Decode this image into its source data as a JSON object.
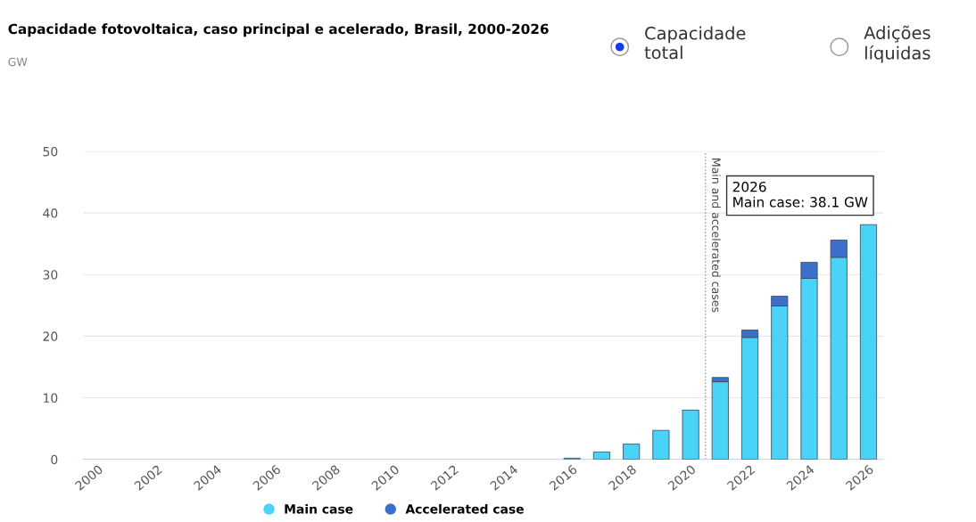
{
  "chart_data": {
    "type": "bar",
    "title": "Capacidade fotovoltaica, caso principal e acelerado, Brasil, 2000-2026",
    "subtitle": "GW",
    "x": [
      2000,
      2001,
      2002,
      2003,
      2004,
      2005,
      2006,
      2007,
      2008,
      2009,
      2010,
      2011,
      2012,
      2013,
      2014,
      2015,
      2016,
      2017,
      2018,
      2019,
      2020,
      2021,
      2022,
      2023,
      2024,
      2025,
      2026
    ],
    "stacked": true,
    "series": [
      {
        "name": "Main case",
        "color": "#48d3f7",
        "values": [
          0,
          0,
          0,
          0,
          0,
          0,
          0,
          0,
          0,
          0,
          0,
          0,
          0,
          0,
          0,
          0,
          0.2,
          1.2,
          2.5,
          4.7,
          8.0,
          12.6,
          19.8,
          24.9,
          29.4,
          32.8,
          38.1
        ]
      },
      {
        "name": "Accelerated case",
        "color": "#3b6fcb",
        "values": [
          0,
          0,
          0,
          0,
          0,
          0,
          0,
          0,
          0,
          0,
          0,
          0,
          0,
          0,
          0,
          0,
          0,
          0,
          0,
          0,
          0,
          0.7,
          1.2,
          1.6,
          2.6,
          2.8,
          null
        ]
      }
    ],
    "xlim": [
      1999.5,
      2026.5
    ],
    "xticks": [
      2000,
      2002,
      2004,
      2006,
      2008,
      2010,
      2012,
      2014,
      2016,
      2018,
      2020,
      2022,
      2024,
      2026
    ],
    "ylim": [
      0,
      50
    ],
    "yticks": [
      0,
      10,
      20,
      30,
      40,
      50
    ],
    "grid": "y",
    "legend": "bottom",
    "ref_lines": [
      {
        "axis": "x",
        "value": 2020.5,
        "label": "Main and accelerated cases",
        "color": "#999999",
        "line_style": "dotted"
      }
    ],
    "annotations": [
      {
        "text": "2026\nMain case: 38.1 GW",
        "x": 2026,
        "y": 38.1
      },
      "Capacidade\ntotal",
      "Adições\nlíquidas"
    ]
  }
}
